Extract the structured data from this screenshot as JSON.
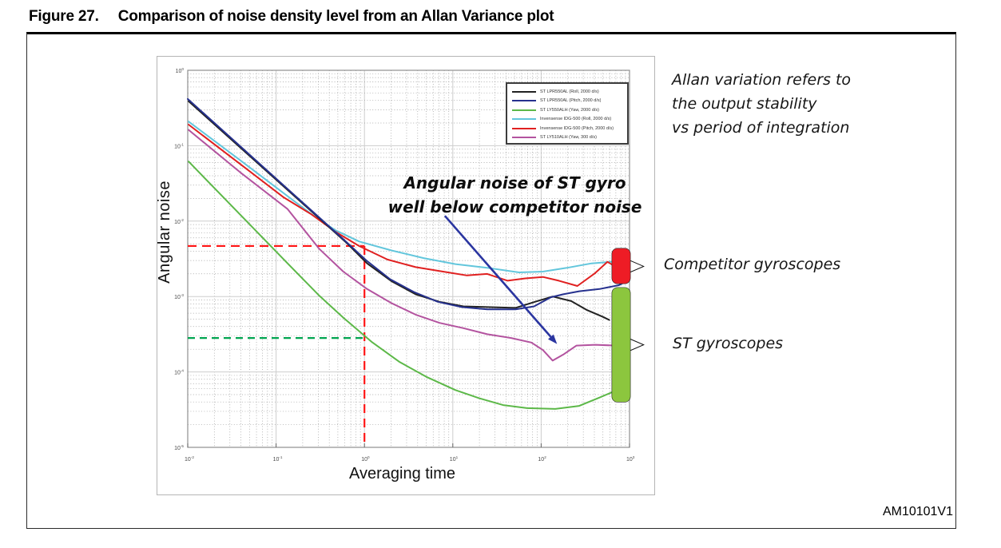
{
  "figure": {
    "label": "Figure 27.",
    "title": "Comparison of noise density level from an Allan Variance plot",
    "code": "AM10101V1"
  },
  "note": {
    "line1": "Angular noise of ST gyro",
    "line2": "well below competitor noise"
  },
  "aside": {
    "line1": "Allan variation refers to",
    "line2": "the output stability",
    "line3": "vs period of integration"
  },
  "group_labels": {
    "competitor": "Competitor gyroscopes",
    "st": "ST gyroscopes"
  },
  "colors": {
    "grid_major": "#cdcdcd",
    "grid_minor": "#9a9a9a",
    "plot_border": "#8f8f8f",
    "image_border": "#b5b5b5",
    "red_guide": "#ff1515",
    "green_guide": "#00a550",
    "arrow": "#2a35a0",
    "competitor_bracket": "#ee1c25",
    "st_bracket": "#8cc63e"
  },
  "chart_data": {
    "type": "line",
    "title": "",
    "xlabel": "Averaging time",
    "ylabel": "Angular noise",
    "x_scale": "log",
    "y_scale": "log",
    "grid": true,
    "legend_position": "top-right",
    "x_tick_exponents": [
      -2,
      -1,
      0,
      1,
      2,
      3
    ],
    "y_tick_exponents": [
      0,
      -1,
      -2,
      -3,
      -4,
      -5
    ],
    "series": [
      {
        "name": "ST LPR550AL (Roll, 2000 d/s)",
        "color": "#222222",
        "width": 2,
        "points": [
          [
            -1.99,
            -0.41
          ],
          [
            -0.21,
            -2.28
          ],
          [
            0.03,
            -2.56
          ],
          [
            0.31,
            -2.8
          ],
          [
            0.58,
            -2.97
          ],
          [
            0.85,
            -3.07
          ],
          [
            1.12,
            -3.13
          ],
          [
            1.39,
            -3.14
          ],
          [
            1.71,
            -3.15
          ],
          [
            1.93,
            -3.07
          ],
          [
            2.13,
            -3.0
          ],
          [
            2.34,
            -3.06
          ],
          [
            2.52,
            -3.18
          ],
          [
            2.7,
            -3.27
          ],
          [
            2.77,
            -3.31
          ]
        ]
      },
      {
        "name": "ST LPR550AL (Pitch, 2000 d/s)",
        "color": "#26318e",
        "width": 2,
        "points": [
          [
            -2.0,
            -0.38
          ],
          [
            -0.23,
            -2.25
          ],
          [
            0.02,
            -2.52
          ],
          [
            0.29,
            -2.77
          ],
          [
            0.56,
            -2.94
          ],
          [
            0.83,
            -3.07
          ],
          [
            1.1,
            -3.14
          ],
          [
            1.39,
            -3.17
          ],
          [
            1.71,
            -3.17
          ],
          [
            1.92,
            -3.13
          ],
          [
            2.11,
            -3.01
          ],
          [
            2.25,
            -2.97
          ],
          [
            2.43,
            -2.93
          ],
          [
            2.66,
            -2.9
          ],
          [
            2.88,
            -2.85
          ],
          [
            2.98,
            -2.79
          ]
        ]
      },
      {
        "name": "ST LY550ALH (Yaw, 2000 d/s)",
        "color": "#5cb848",
        "width": 2,
        "points": [
          [
            -1.99,
            -1.21
          ],
          [
            -1.41,
            -1.91
          ],
          [
            -0.87,
            -2.56
          ],
          [
            -0.51,
            -2.99
          ],
          [
            -0.24,
            -3.28
          ],
          [
            0.08,
            -3.6
          ],
          [
            0.4,
            -3.87
          ],
          [
            0.71,
            -4.07
          ],
          [
            1.03,
            -4.24
          ],
          [
            1.3,
            -4.35
          ],
          [
            1.57,
            -4.44
          ],
          [
            1.84,
            -4.48
          ],
          [
            2.16,
            -4.49
          ],
          [
            2.43,
            -4.45
          ],
          [
            2.66,
            -4.34
          ],
          [
            2.84,
            -4.25
          ],
          [
            2.98,
            -4.14
          ]
        ]
      },
      {
        "name": "Invensense IDG-500 (Roll, 2000 d/s)",
        "color": "#62c6dc",
        "width": 2,
        "points": [
          [
            -1.99,
            -0.68
          ],
          [
            -1.41,
            -1.19
          ],
          [
            -0.87,
            -1.67
          ],
          [
            -0.55,
            -1.95
          ],
          [
            -0.33,
            -2.12
          ],
          [
            -0.06,
            -2.27
          ],
          [
            0.31,
            -2.39
          ],
          [
            0.67,
            -2.49
          ],
          [
            1.03,
            -2.57
          ],
          [
            1.39,
            -2.62
          ],
          [
            1.75,
            -2.68
          ],
          [
            2.02,
            -2.67
          ],
          [
            2.29,
            -2.62
          ],
          [
            2.57,
            -2.56
          ],
          [
            2.79,
            -2.54
          ],
          [
            2.98,
            -2.51
          ]
        ]
      },
      {
        "name": "Invensense IDG-500 (Pitch, 2000 d/s)",
        "color": "#e02020",
        "width": 2,
        "points": [
          [
            -1.99,
            -0.72
          ],
          [
            -1.41,
            -1.24
          ],
          [
            -0.92,
            -1.68
          ],
          [
            -0.6,
            -1.91
          ],
          [
            -0.33,
            -2.14
          ],
          [
            -0.06,
            -2.33
          ],
          [
            0.26,
            -2.51
          ],
          [
            0.58,
            -2.61
          ],
          [
            0.89,
            -2.67
          ],
          [
            1.16,
            -2.72
          ],
          [
            1.39,
            -2.7
          ],
          [
            1.62,
            -2.79
          ],
          [
            1.82,
            -2.76
          ],
          [
            2.02,
            -2.74
          ],
          [
            2.2,
            -2.79
          ],
          [
            2.41,
            -2.86
          ],
          [
            2.61,
            -2.69
          ],
          [
            2.75,
            -2.54
          ],
          [
            2.88,
            -2.63
          ],
          [
            2.98,
            -2.57
          ]
        ]
      },
      {
        "name": "ST LY510ALH (Yaw, 300 d/s)",
        "color": "#b3539f",
        "width": 2,
        "points": [
          [
            -1.99,
            -0.79
          ],
          [
            -1.41,
            -1.35
          ],
          [
            -0.87,
            -1.84
          ],
          [
            -0.51,
            -2.37
          ],
          [
            -0.24,
            -2.67
          ],
          [
            0.03,
            -2.9
          ],
          [
            0.31,
            -3.09
          ],
          [
            0.58,
            -3.24
          ],
          [
            0.85,
            -3.35
          ],
          [
            1.12,
            -3.42
          ],
          [
            1.39,
            -3.5
          ],
          [
            1.66,
            -3.55
          ],
          [
            1.89,
            -3.61
          ],
          [
            2.02,
            -3.71
          ],
          [
            2.13,
            -3.85
          ],
          [
            2.25,
            -3.77
          ],
          [
            2.4,
            -3.65
          ],
          [
            2.61,
            -3.64
          ],
          [
            2.84,
            -3.65
          ],
          [
            2.98,
            -3.63
          ]
        ]
      }
    ],
    "guides": [
      {
        "name": "competitor-noise-level",
        "color": "#ff1515",
        "dash": "11 7",
        "from": [
          -2,
          -2.33
        ],
        "to": [
          0,
          -2.33
        ]
      },
      {
        "name": "integration-time-marker",
        "color": "#ff1515",
        "dash": "11 7",
        "from": [
          0,
          -2.33
        ],
        "to": [
          0,
          -5
        ]
      },
      {
        "name": "st-noise-level",
        "color": "#00a550",
        "dash": "9 6",
        "from": [
          -2,
          -3.55
        ],
        "to": [
          0,
          -3.55
        ]
      }
    ],
    "arrow": {
      "from": [
        0.91,
        -1.93
      ],
      "to": [
        2.18,
        -3.63
      ],
      "color": "#2a35a0"
    },
    "brackets": [
      {
        "name": "competitor-group",
        "color": "#ee1c25",
        "x": [
          2.8,
          3.01
        ],
        "y": [
          -2.36,
          -2.83
        ],
        "tip": [
          3.16,
          -2.6
        ]
      },
      {
        "name": "st-group",
        "color": "#8cc63e",
        "x": [
          2.8,
          3.01
        ],
        "y": [
          -2.88,
          -4.4
        ],
        "tip": [
          3.16,
          -3.64
        ]
      }
    ]
  }
}
